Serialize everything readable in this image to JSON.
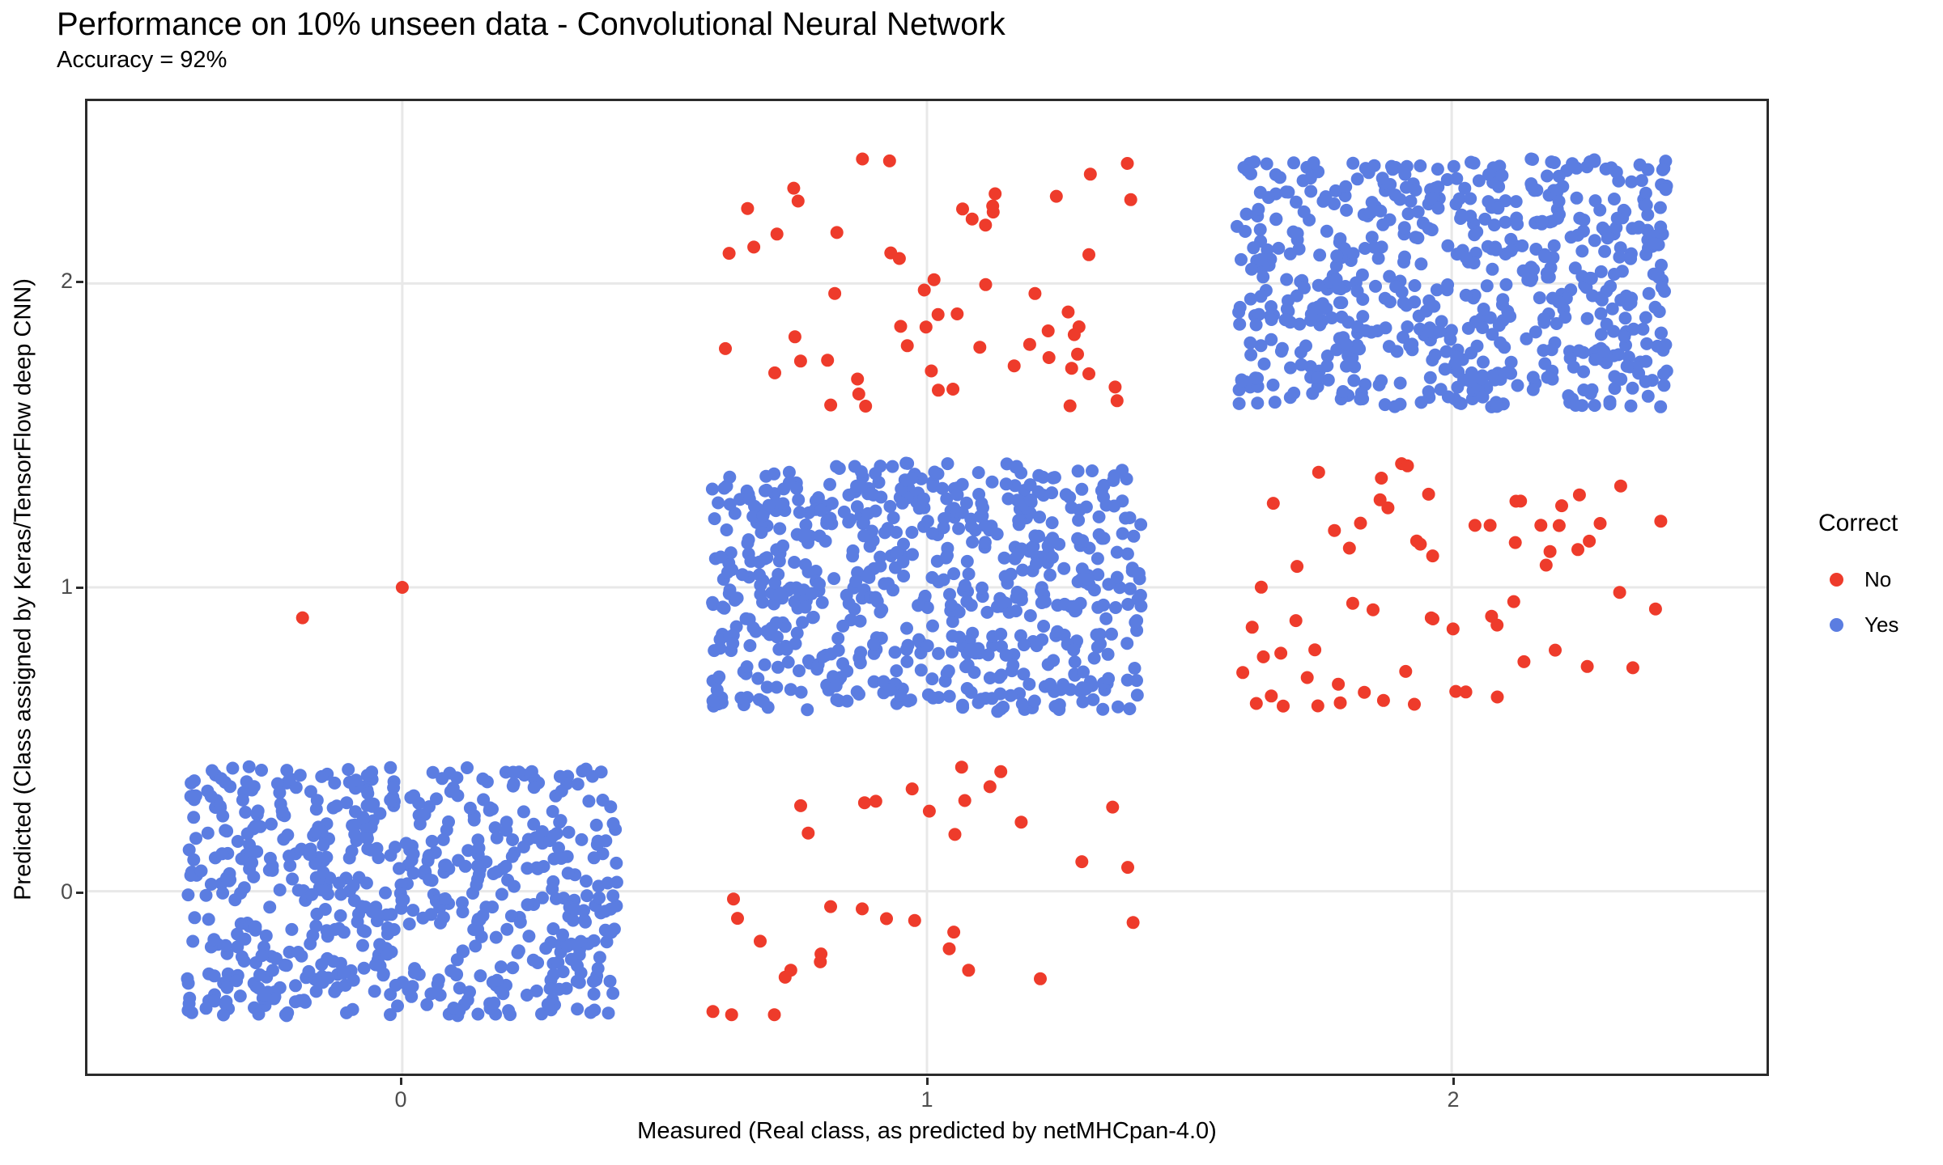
{
  "chart": {
    "title": "Performance on 10% unseen data - Convolutional Neural Network",
    "subtitle": "Accuracy = 92%",
    "xlabel": "Measured (Real class, as predicted by netMHCpan-4.0)",
    "ylabel": "Predicted (Class assigned by Keras/TensorFlow deep CNN)"
  },
  "chart_data": {
    "type": "scatter",
    "style": "jittered categorical scatter (confusion-matrix style, ggplot-like)",
    "title": "Performance on 10% unseen data - Convolutional Neural Network",
    "subtitle": "Accuracy = 92%",
    "xlabel": "Measured (Real class, as predicted by netMHCpan-4.0)",
    "ylabel": "Predicted (Class assigned by Keras/TensorFlow deep CNN)",
    "xlim": [
      -0.6,
      2.6
    ],
    "ylim": [
      -0.6,
      2.6
    ],
    "x_ticks": [
      "0",
      "1",
      "2"
    ],
    "y_ticks": [
      "0",
      "1",
      "2"
    ],
    "x_tick_values": [
      0,
      1,
      2
    ],
    "y_tick_values": [
      0,
      1,
      2
    ],
    "grid": "major gridlines only, light gray, white background, black panel border",
    "gridline_color": "#e8e8e8",
    "point_radius_px": 8,
    "jitter_halfwidth": 0.41,
    "legend": {
      "title": "Correct",
      "position": "right",
      "items": [
        {
          "label": "No",
          "color": "#ee3b2b"
        },
        {
          "label": "Yes",
          "color": "#5b7de1"
        }
      ]
    },
    "colors": {
      "No": "#ee3b2b",
      "Yes": "#5b7de1"
    },
    "clusters": [
      {
        "measured": 0,
        "predicted": 0,
        "correct": "Yes",
        "n": 620,
        "seed": 11
      },
      {
        "measured": 1,
        "predicted": 1,
        "correct": "Yes",
        "n": 650,
        "seed": 22
      },
      {
        "measured": 2,
        "predicted": 2,
        "correct": "Yes",
        "n": 630,
        "seed": 33
      },
      {
        "measured": 1,
        "predicted": 2,
        "correct": "No",
        "n": 58,
        "seed": 44
      },
      {
        "measured": 2,
        "predicted": 1,
        "correct": "No",
        "n": 66,
        "seed": 55
      },
      {
        "measured": 1,
        "predicted": 0,
        "correct": "No",
        "n": 34,
        "seed": 66
      }
    ],
    "extra_points": [
      {
        "x": -0.19,
        "y": 0.9,
        "correct": "No"
      },
      {
        "x": 0.0,
        "y": 1.0,
        "correct": "No"
      }
    ]
  }
}
